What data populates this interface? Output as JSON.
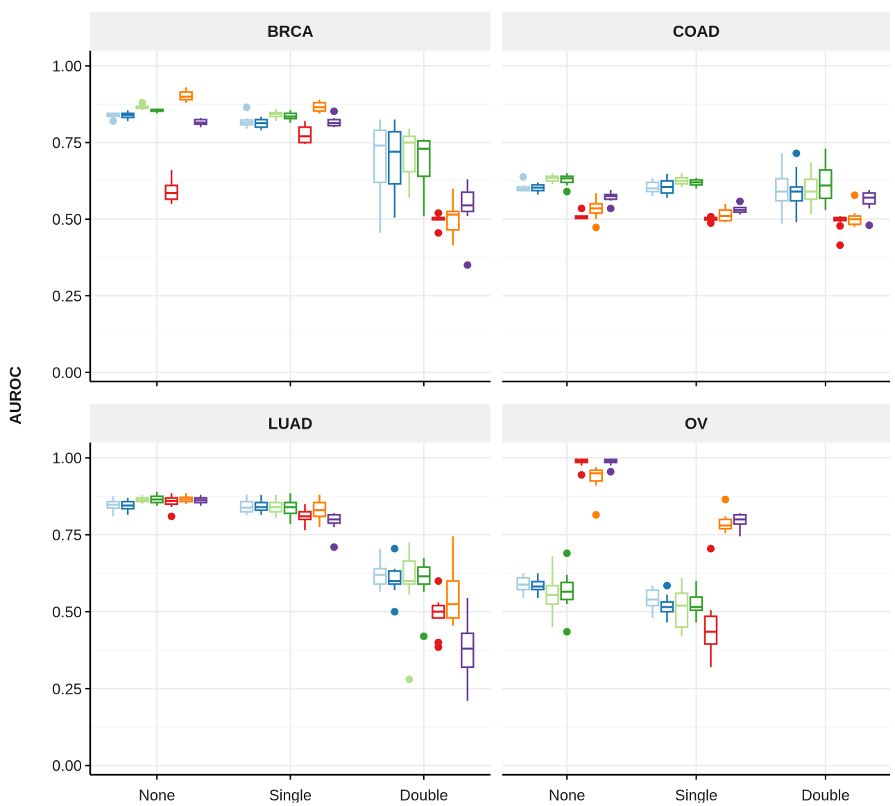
{
  "chart_data": {
    "type": "box",
    "ylabel": "AUROC",
    "xlabel": "",
    "ylim": [
      -0.03,
      1.05
    ],
    "yticks": [
      "0.00",
      "0.25",
      "0.50",
      "0.75",
      "1.00"
    ],
    "categories": [
      "None",
      "Single",
      "Double"
    ],
    "series_colors": [
      "#a6cee3",
      "#1f78b4",
      "#b2df8a",
      "#33a02c",
      "#e31a1c",
      "#ff7f00",
      "#6a3d9a"
    ],
    "grid": true,
    "legend": "none",
    "panels": [
      {
        "title": "BRCA",
        "groups": {
          "None": [
            {
              "min": 0.835,
              "q1": 0.835,
              "median": 0.84,
              "q3": 0.845,
              "max": 0.845,
              "outliers": [
                0.82
              ]
            },
            {
              "min": 0.82,
              "q1": 0.832,
              "median": 0.84,
              "q3": 0.845,
              "max": 0.855,
              "outliers": []
            },
            {
              "min": 0.855,
              "q1": 0.862,
              "median": 0.865,
              "q3": 0.868,
              "max": 0.872,
              "outliers": [
                0.88
              ]
            },
            {
              "min": 0.845,
              "q1": 0.852,
              "median": 0.855,
              "q3": 0.858,
              "max": 0.86,
              "outliers": []
            },
            {
              "min": 0.55,
              "q1": 0.565,
              "median": 0.585,
              "q3": 0.61,
              "max": 0.66,
              "outliers": []
            },
            {
              "min": 0.88,
              "q1": 0.89,
              "median": 0.9,
              "q3": 0.915,
              "max": 0.93,
              "outliers": []
            },
            {
              "min": 0.8,
              "q1": 0.81,
              "median": 0.815,
              "q3": 0.825,
              "max": 0.83,
              "outliers": []
            }
          ],
          "Single": [
            {
              "min": 0.795,
              "q1": 0.808,
              "median": 0.815,
              "q3": 0.823,
              "max": 0.83,
              "outliers": [
                0.865
              ]
            },
            {
              "min": 0.79,
              "q1": 0.8,
              "median": 0.813,
              "q3": 0.825,
              "max": 0.835,
              "outliers": []
            },
            {
              "min": 0.82,
              "q1": 0.835,
              "median": 0.843,
              "q3": 0.848,
              "max": 0.86,
              "outliers": []
            },
            {
              "min": 0.815,
              "q1": 0.828,
              "median": 0.835,
              "q3": 0.845,
              "max": 0.855,
              "outliers": []
            },
            {
              "min": 0.745,
              "q1": 0.75,
              "median": 0.77,
              "q3": 0.8,
              "max": 0.82,
              "outliers": []
            },
            {
              "min": 0.845,
              "q1": 0.853,
              "median": 0.865,
              "q3": 0.88,
              "max": 0.89,
              "outliers": []
            },
            {
              "min": 0.8,
              "q1": 0.805,
              "median": 0.813,
              "q3": 0.825,
              "max": 0.83,
              "outliers": [
                0.852
              ]
            }
          ],
          "Double": [
            {
              "min": 0.455,
              "q1": 0.62,
              "median": 0.74,
              "q3": 0.79,
              "max": 0.825,
              "outliers": []
            },
            {
              "min": 0.505,
              "q1": 0.615,
              "median": 0.72,
              "q3": 0.785,
              "max": 0.825,
              "outliers": []
            },
            {
              "min": 0.57,
              "q1": 0.655,
              "median": 0.75,
              "q3": 0.77,
              "max": 0.795,
              "outliers": []
            },
            {
              "min": 0.51,
              "q1": 0.64,
              "median": 0.73,
              "q3": 0.755,
              "max": 0.76,
              "outliers": []
            },
            {
              "min": 0.495,
              "q1": 0.498,
              "median": 0.5,
              "q3": 0.505,
              "max": 0.51,
              "outliers": [
                0.455,
                0.52
              ]
            },
            {
              "min": 0.415,
              "q1": 0.465,
              "median": 0.515,
              "q3": 0.525,
              "max": 0.6,
              "outliers": []
            },
            {
              "min": 0.51,
              "q1": 0.525,
              "median": 0.545,
              "q3": 0.588,
              "max": 0.63,
              "outliers": [
                0.35
              ]
            }
          ]
        }
      },
      {
        "title": "COAD",
        "groups": {
          "None": [
            {
              "min": 0.59,
              "q1": 0.593,
              "median": 0.598,
              "q3": 0.605,
              "max": 0.61,
              "outliers": [
                0.638
              ]
            },
            {
              "min": 0.58,
              "q1": 0.593,
              "median": 0.603,
              "q3": 0.612,
              "max": 0.62,
              "outliers": []
            },
            {
              "min": 0.615,
              "q1": 0.625,
              "median": 0.635,
              "q3": 0.64,
              "max": 0.65,
              "outliers": []
            },
            {
              "min": 0.61,
              "q1": 0.62,
              "median": 0.633,
              "q3": 0.64,
              "max": 0.65,
              "outliers": [
                0.59
              ]
            },
            {
              "min": 0.5,
              "q1": 0.502,
              "median": 0.505,
              "q3": 0.51,
              "max": 0.51,
              "outliers": [
                0.535
              ]
            },
            {
              "min": 0.5,
              "q1": 0.52,
              "median": 0.535,
              "q3": 0.55,
              "max": 0.585,
              "outliers": [
                0.473
              ]
            },
            {
              "min": 0.56,
              "q1": 0.565,
              "median": 0.575,
              "q3": 0.58,
              "max": 0.595,
              "outliers": [
                0.535
              ]
            }
          ],
          "Single": [
            {
              "min": 0.575,
              "q1": 0.59,
              "median": 0.6,
              "q3": 0.62,
              "max": 0.635,
              "outliers": []
            },
            {
              "min": 0.57,
              "q1": 0.585,
              "median": 0.605,
              "q3": 0.625,
              "max": 0.648,
              "outliers": []
            },
            {
              "min": 0.605,
              "q1": 0.615,
              "median": 0.625,
              "q3": 0.635,
              "max": 0.65,
              "outliers": []
            },
            {
              "min": 0.6,
              "q1": 0.612,
              "median": 0.62,
              "q3": 0.628,
              "max": 0.635,
              "outliers": []
            },
            {
              "min": 0.495,
              "q1": 0.497,
              "median": 0.5,
              "q3": 0.505,
              "max": 0.51,
              "outliers": [
                0.487,
                0.508
              ]
            },
            {
              "min": 0.49,
              "q1": 0.495,
              "median": 0.51,
              "q3": 0.53,
              "max": 0.55,
              "outliers": []
            },
            {
              "min": 0.515,
              "q1": 0.523,
              "median": 0.53,
              "q3": 0.538,
              "max": 0.54,
              "outliers": [
                0.558
              ]
            }
          ],
          "Double": [
            {
              "min": 0.485,
              "q1": 0.56,
              "median": 0.59,
              "q3": 0.632,
              "max": 0.715,
              "outliers": []
            },
            {
              "min": 0.49,
              "q1": 0.56,
              "median": 0.59,
              "q3": 0.605,
              "max": 0.67,
              "outliers": [
                0.715
              ]
            },
            {
              "min": 0.515,
              "q1": 0.565,
              "median": 0.59,
              "q3": 0.63,
              "max": 0.685,
              "outliers": []
            },
            {
              "min": 0.53,
              "q1": 0.568,
              "median": 0.61,
              "q3": 0.66,
              "max": 0.73,
              "outliers": []
            },
            {
              "min": 0.49,
              "q1": 0.495,
              "median": 0.5,
              "q3": 0.505,
              "max": 0.51,
              "outliers": [
                0.415,
                0.478
              ]
            },
            {
              "min": 0.475,
              "q1": 0.483,
              "median": 0.5,
              "q3": 0.51,
              "max": 0.52,
              "outliers": [
                0.578
              ]
            },
            {
              "min": 0.535,
              "q1": 0.55,
              "median": 0.57,
              "q3": 0.585,
              "max": 0.595,
              "outliers": [
                0.48
              ]
            }
          ]
        }
      },
      {
        "title": "LUAD",
        "groups": {
          "None": [
            {
              "min": 0.81,
              "q1": 0.837,
              "median": 0.848,
              "q3": 0.858,
              "max": 0.875,
              "outliers": []
            },
            {
              "min": 0.815,
              "q1": 0.835,
              "median": 0.845,
              "q3": 0.858,
              "max": 0.87,
              "outliers": []
            },
            {
              "min": 0.85,
              "q1": 0.858,
              "median": 0.863,
              "q3": 0.87,
              "max": 0.88,
              "outliers": []
            },
            {
              "min": 0.845,
              "q1": 0.855,
              "median": 0.865,
              "q3": 0.875,
              "max": 0.89,
              "outliers": []
            },
            {
              "min": 0.84,
              "q1": 0.85,
              "median": 0.86,
              "q3": 0.87,
              "max": 0.885,
              "outliers": [
                0.81
              ]
            },
            {
              "min": 0.85,
              "q1": 0.858,
              "median": 0.865,
              "q3": 0.872,
              "max": 0.885,
              "outliers": []
            },
            {
              "min": 0.845,
              "q1": 0.855,
              "median": 0.863,
              "q3": 0.87,
              "max": 0.88,
              "outliers": []
            }
          ],
          "Single": [
            {
              "min": 0.815,
              "q1": 0.825,
              "median": 0.838,
              "q3": 0.858,
              "max": 0.88,
              "outliers": []
            },
            {
              "min": 0.815,
              "q1": 0.83,
              "median": 0.84,
              "q3": 0.855,
              "max": 0.88,
              "outliers": []
            },
            {
              "min": 0.805,
              "q1": 0.825,
              "median": 0.84,
              "q3": 0.855,
              "max": 0.88,
              "outliers": []
            },
            {
              "min": 0.785,
              "q1": 0.82,
              "median": 0.84,
              "q3": 0.855,
              "max": 0.885,
              "outliers": []
            },
            {
              "min": 0.765,
              "q1": 0.8,
              "median": 0.81,
              "q3": 0.825,
              "max": 0.85,
              "outliers": []
            },
            {
              "min": 0.775,
              "q1": 0.81,
              "median": 0.83,
              "q3": 0.855,
              "max": 0.88,
              "outliers": []
            },
            {
              "min": 0.775,
              "q1": 0.788,
              "median": 0.8,
              "q3": 0.815,
              "max": 0.82,
              "outliers": [
                0.71
              ]
            }
          ],
          "Double": [
            {
              "min": 0.565,
              "q1": 0.59,
              "median": 0.62,
              "q3": 0.64,
              "max": 0.705,
              "outliers": []
            },
            {
              "min": 0.57,
              "q1": 0.59,
              "median": 0.6,
              "q3": 0.632,
              "max": 0.64,
              "outliers": [
                0.5,
                0.705
              ]
            },
            {
              "min": 0.555,
              "q1": 0.59,
              "median": 0.6,
              "q3": 0.665,
              "max": 0.725,
              "outliers": [
                0.28
              ]
            },
            {
              "min": 0.565,
              "q1": 0.59,
              "median": 0.615,
              "q3": 0.645,
              "max": 0.675,
              "outliers": [
                0.42
              ]
            },
            {
              "min": 0.48,
              "q1": 0.48,
              "median": 0.5,
              "q3": 0.52,
              "max": 0.53,
              "outliers": [
                0.385,
                0.4,
                0.6
              ]
            },
            {
              "min": 0.455,
              "q1": 0.48,
              "median": 0.525,
              "q3": 0.6,
              "max": 0.745,
              "outliers": []
            },
            {
              "min": 0.21,
              "q1": 0.32,
              "median": 0.38,
              "q3": 0.43,
              "max": 0.545,
              "outliers": []
            }
          ]
        }
      },
      {
        "title": "OV",
        "groups": {
          "None": [
            {
              "min": 0.545,
              "q1": 0.572,
              "median": 0.588,
              "q3": 0.61,
              "max": 0.625,
              "outliers": []
            },
            {
              "min": 0.545,
              "q1": 0.572,
              "median": 0.582,
              "q3": 0.598,
              "max": 0.625,
              "outliers": []
            },
            {
              "min": 0.45,
              "q1": 0.525,
              "median": 0.555,
              "q3": 0.585,
              "max": 0.68,
              "outliers": []
            },
            {
              "min": 0.525,
              "q1": 0.54,
              "median": 0.565,
              "q3": 0.595,
              "max": 0.62,
              "outliers": [
                0.435,
                0.69
              ]
            },
            {
              "min": 0.975,
              "q1": 0.985,
              "median": 0.99,
              "q3": 0.995,
              "max": 0.995,
              "outliers": [
                0.945
              ]
            },
            {
              "min": 0.91,
              "q1": 0.925,
              "median": 0.95,
              "q3": 0.96,
              "max": 0.97,
              "outliers": [
                0.815
              ]
            },
            {
              "min": 0.975,
              "q1": 0.985,
              "median": 0.99,
              "q3": 0.995,
              "max": 0.995,
              "outliers": [
                0.955
              ]
            }
          ],
          "Single": [
            {
              "min": 0.48,
              "q1": 0.52,
              "median": 0.54,
              "q3": 0.57,
              "max": 0.585,
              "outliers": []
            },
            {
              "min": 0.465,
              "q1": 0.5,
              "median": 0.515,
              "q3": 0.532,
              "max": 0.555,
              "outliers": [
                0.585
              ]
            },
            {
              "min": 0.42,
              "q1": 0.45,
              "median": 0.52,
              "q3": 0.56,
              "max": 0.61,
              "outliers": []
            },
            {
              "min": 0.465,
              "q1": 0.505,
              "median": 0.515,
              "q3": 0.548,
              "max": 0.6,
              "outliers": []
            },
            {
              "min": 0.32,
              "q1": 0.395,
              "median": 0.435,
              "q3": 0.485,
              "max": 0.505,
              "outliers": [
                0.705
              ]
            },
            {
              "min": 0.755,
              "q1": 0.77,
              "median": 0.78,
              "q3": 0.8,
              "max": 0.81,
              "outliers": [
                0.865
              ]
            },
            {
              "min": 0.745,
              "q1": 0.785,
              "median": 0.8,
              "q3": 0.815,
              "max": 0.82,
              "outliers": []
            }
          ],
          "Double": []
        }
      }
    ]
  }
}
